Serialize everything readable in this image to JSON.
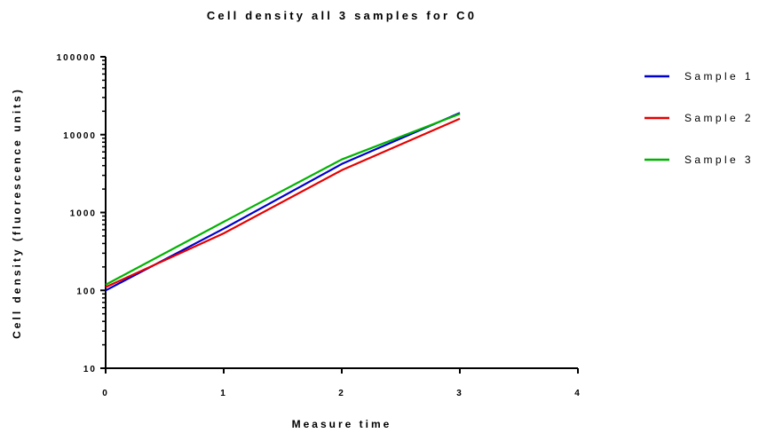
{
  "chart_data": {
    "type": "line",
    "title": "Cell density all 3 samples for C0",
    "xlabel": "Measure time",
    "ylabel": "Cell density (fluorescence units)",
    "x": [
      0,
      1,
      2,
      3
    ],
    "xlim": [
      0,
      4
    ],
    "xticks": [
      "0",
      "1",
      "2",
      "3",
      "4"
    ],
    "ylim": [
      10,
      100000
    ],
    "yscale": "log",
    "yticks": [
      "10",
      "100",
      "1000",
      "10000",
      "100000"
    ],
    "legend_position": "right",
    "grid": false,
    "series": [
      {
        "name": "Sample 1",
        "color": "#0000cc",
        "values": [
          100,
          620,
          4200,
          19000
        ]
      },
      {
        "name": "Sample 2",
        "color": "#e60000",
        "values": [
          110,
          540,
          3500,
          16000
        ]
      },
      {
        "name": "Sample 3",
        "color": "#00b300",
        "values": [
          118,
          760,
          4800,
          18500
        ]
      }
    ]
  }
}
